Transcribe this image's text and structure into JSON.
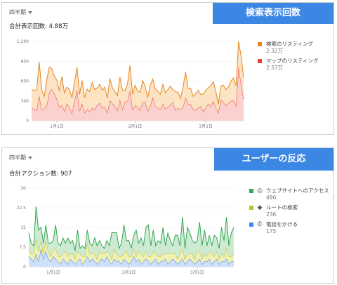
{
  "panel1": {
    "period": "四半期",
    "banner": "検索表示回数",
    "total": "合計表示回数: 4.88万",
    "legend": [
      {
        "label": "検索のリスティング",
        "value": "2.32万",
        "color": "#e8871e"
      },
      {
        "label": "マップのリスティング",
        "value": "2.57万",
        "color": "#ea4335"
      }
    ]
  },
  "panel2": {
    "period": "四半期",
    "banner": "ユーザーの反応",
    "total": "合計アクション数: 907",
    "legend": [
      {
        "label": "ウェブサイトへのアクセス",
        "value": "496",
        "color": "#34a853",
        "icon": "globe-icon",
        "glyph": "◎"
      },
      {
        "label": "ルートの検索",
        "value": "236",
        "color": "#b7c32a",
        "icon": "directions-icon",
        "glyph": "◆"
      },
      {
        "label": "電話をかける",
        "value": "175",
        "color": "#4285f4",
        "icon": "phone-icon",
        "glyph": "✆"
      }
    ]
  },
  "chart_data": [
    {
      "type": "area",
      "stacked": true,
      "yticks": [
        "0",
        "300",
        "600",
        "900",
        "1,200"
      ],
      "ylim": [
        0,
        1200
      ],
      "xticks": [
        {
          "label": "1月1日",
          "index": 10
        },
        {
          "label": "2月1日",
          "index": 41
        },
        {
          "label": "3月1日",
          "index": 69
        }
      ],
      "series": [
        {
          "name": "マップのリスティング",
          "color": "#ea4335",
          "fill": "#fbd1cf",
          "values": [
            200,
            175,
            160,
            380,
            170,
            180,
            230,
            430,
            480,
            410,
            330,
            200,
            240,
            150,
            260,
            200,
            120,
            300,
            470,
            150,
            260,
            120,
            180,
            140,
            200,
            170,
            240,
            270,
            190,
            210,
            120,
            310,
            260,
            220,
            160,
            320,
            180,
            280,
            300,
            460,
            170,
            230,
            210,
            160,
            280,
            290,
            150,
            220,
            360,
            220,
            200,
            170,
            260,
            180,
            210,
            240,
            280,
            160,
            190,
            170,
            210,
            350,
            250,
            250,
            170,
            160,
            200,
            220,
            140,
            200,
            260,
            220,
            300,
            200,
            120,
            320,
            280,
            230,
            260,
            300,
            310,
            230,
            820,
            560,
            330
          ]
        },
        {
          "name": "検索のリスティング",
          "color": "#e8871e",
          "fill": "#fbe3c4",
          "values": [
            270,
            290,
            300,
            510,
            300,
            190,
            390,
            380,
            310,
            270,
            280,
            250,
            430,
            270,
            250,
            270,
            230,
            280,
            340,
            250,
            350,
            230,
            300,
            300,
            380,
            300,
            260,
            280,
            270,
            300,
            220,
            330,
            240,
            220,
            220,
            340,
            280,
            180,
            260,
            380,
            230,
            310,
            240,
            270,
            330,
            230,
            200,
            320,
            270,
            260,
            250,
            230,
            290,
            240,
            260,
            280,
            190,
            280,
            240,
            170,
            300,
            390,
            240,
            240,
            200,
            250,
            260,
            180,
            260,
            260,
            240,
            310,
            290,
            240,
            130,
            200,
            260,
            240,
            250,
            300,
            340,
            300,
            380,
            420,
            320
          ]
        }
      ]
    },
    {
      "type": "area",
      "stacked": true,
      "yticks": [
        "0",
        "7.5",
        "15",
        "22.5",
        "30"
      ],
      "ylim": [
        0,
        30
      ],
      "xticks": [
        {
          "label": "1月1日",
          "index": 10
        },
        {
          "label": "2月1日",
          "index": 41
        },
        {
          "label": "3月1日",
          "index": 69
        }
      ],
      "series": [
        {
          "name": "電話をかける",
          "color": "#4285f4",
          "fill": "#cfe0fb",
          "values": [
            4,
            3,
            2,
            5,
            2,
            7,
            3,
            6,
            3,
            2,
            4,
            3,
            2,
            1,
            3,
            2,
            1,
            3,
            2,
            1,
            2,
            3,
            1,
            2,
            4,
            2,
            3,
            2,
            1,
            2,
            3,
            2,
            4,
            2,
            1,
            3,
            2,
            2,
            1,
            3,
            2,
            1,
            2,
            4,
            2,
            3,
            1,
            2,
            3,
            2,
            1,
            2,
            3,
            1,
            2,
            2,
            3,
            1,
            2,
            3,
            2,
            1,
            2,
            3,
            1,
            2,
            3,
            2,
            1,
            2,
            3,
            1,
            2,
            2,
            3,
            1,
            2,
            3,
            1,
            2,
            2,
            3,
            1,
            2,
            2
          ]
        },
        {
          "name": "ルートの検索",
          "color": "#b7c32a",
          "fill": "#f1f0b4",
          "values": [
            3,
            2,
            3,
            6,
            4,
            3,
            2,
            4,
            3,
            2,
            3,
            4,
            2,
            3,
            2,
            4,
            3,
            2,
            3,
            2,
            4,
            2,
            3,
            2,
            5,
            3,
            2,
            3,
            2,
            4,
            2,
            3,
            2,
            3,
            2,
            4,
            3,
            2,
            3,
            2,
            4,
            3,
            2,
            3,
            2,
            3,
            4,
            2,
            3,
            2,
            3,
            4,
            2,
            3,
            2,
            3,
            2,
            4,
            3,
            2,
            3,
            2,
            3,
            4,
            2,
            3,
            2,
            3,
            2,
            4,
            3,
            2,
            3,
            2,
            3,
            4,
            2,
            3,
            2,
            3,
            2,
            4,
            3,
            2,
            3
          ]
        },
        {
          "name": "ウェブサイトへのアクセス",
          "color": "#34a853",
          "fill": "#cfead3",
          "values": [
            6,
            4,
            3,
            12,
            8,
            5,
            4,
            6,
            3,
            5,
            3,
            9,
            5,
            4,
            6,
            3,
            7,
            4,
            5,
            3,
            8,
            2,
            4,
            3,
            5,
            4,
            3,
            6,
            5,
            4,
            3,
            2,
            4,
            3,
            10,
            6,
            8,
            3,
            5,
            11,
            4,
            6,
            3,
            5,
            10,
            3,
            6,
            4,
            9,
            12,
            4,
            8,
            3,
            6,
            5,
            10,
            3,
            8,
            5,
            3,
            7,
            9,
            3,
            12,
            4,
            10,
            8,
            5,
            6,
            4,
            11,
            5,
            9,
            4,
            6,
            3,
            8,
            5,
            4,
            10,
            6,
            12,
            4,
            9,
            10
          ]
        }
      ]
    }
  ]
}
